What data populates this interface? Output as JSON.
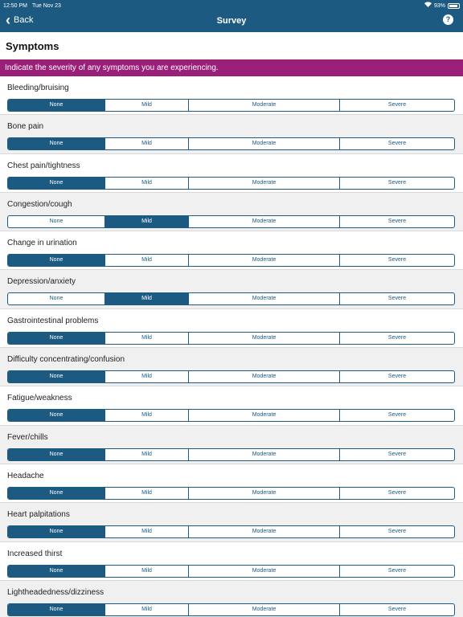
{
  "status": {
    "time": "12:50 PM",
    "date": "Tue Nov 23",
    "battery": "93%"
  },
  "nav": {
    "back_label": "Back",
    "title": "Survey",
    "help_label": "?"
  },
  "section_title": "Symptoms",
  "banner_text": "Indicate the severity of any symptoms you are experiencing.",
  "options": [
    "None",
    "Mild",
    "Moderate",
    "Severe"
  ],
  "symptoms": [
    {
      "label": "Bleeding/bruising",
      "selected": 0
    },
    {
      "label": "Bone pain",
      "selected": 0
    },
    {
      "label": "Chest pain/tightness",
      "selected": 0
    },
    {
      "label": "Congestion/cough",
      "selected": 1
    },
    {
      "label": "Change in urination",
      "selected": 0
    },
    {
      "label": "Depression/anxiety",
      "selected": 1
    },
    {
      "label": "Gastrointestinal problems",
      "selected": 0
    },
    {
      "label": "Difficulty concentrating/confusion",
      "selected": 0
    },
    {
      "label": "Fatigue/weakness",
      "selected": 0
    },
    {
      "label": "Fever/chills",
      "selected": 0
    },
    {
      "label": "Headache",
      "selected": 0
    },
    {
      "label": "Heart palpitations",
      "selected": 0
    },
    {
      "label": "Increased thirst",
      "selected": 0
    },
    {
      "label": "Lightheadedness/dizziness",
      "selected": 0
    }
  ],
  "colors": {
    "navbar": "#1c5a82",
    "banner": "#9a1f78",
    "selected": "#1c5a82"
  }
}
